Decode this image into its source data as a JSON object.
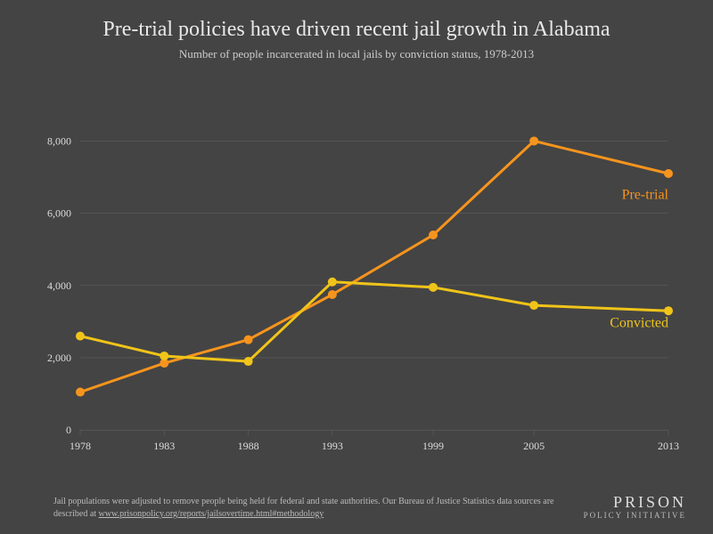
{
  "title": "Pre-trial policies have driven recent jail growth in Alabama",
  "subtitle": "Number of people incarcerated in local jails by conviction status, 1978-2013",
  "footnote_prefix": "Jail populations were adjusted to remove people being held for federal and state authorities. Our Bureau of Justice Statistics data sources are described at ",
  "footnote_link": "www.prisonpolicy.org/reports/jailsovertime.html#methodology",
  "logo_top": "PRISON",
  "logo_bottom": "POLICY INITIATIVE",
  "chart": {
    "type": "line",
    "background_color": "#444444",
    "grid_color": "#666666",
    "axis_text_color": "#dddddd",
    "axis_fontsize": 12,
    "title_fontsize": 24,
    "subtitle_fontsize": 13,
    "x_values": [
      1978,
      1983,
      1988,
      1993,
      1999,
      2005,
      2013
    ],
    "x_labels": [
      "1978",
      "1983",
      "1988",
      "1993",
      "1999",
      "2005",
      "2013"
    ],
    "ylim": [
      0,
      8500
    ],
    "yticks": [
      0,
      2000,
      4000,
      6000,
      8000
    ],
    "ytick_labels": [
      "0",
      "2,000",
      "4,000",
      "6,000",
      "8,000"
    ],
    "marker_radius": 5,
    "line_width": 3,
    "label_fontsize": 16,
    "series": [
      {
        "name": "Pre-trial",
        "color": "#f7941d",
        "values": [
          1050,
          1850,
          2500,
          3750,
          5400,
          8000,
          7100
        ],
        "label_x": 2013,
        "label_y": 6400,
        "label_anchor": "end"
      },
      {
        "name": "Convicted",
        "color": "#f0c419",
        "values": [
          2600,
          2050,
          1900,
          4100,
          3950,
          3450,
          3300
        ],
        "label_x": 2013,
        "label_y": 2850,
        "label_anchor": "end"
      }
    ]
  }
}
